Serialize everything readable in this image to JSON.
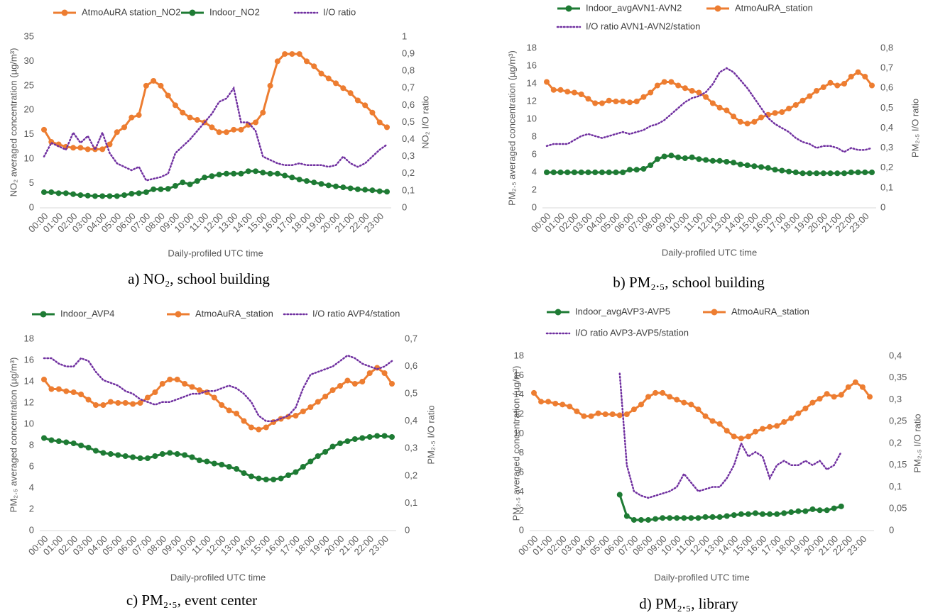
{
  "chart_data": [
    {
      "type": "line",
      "caption": "a) NO₂, school building",
      "xlabel": "Daily-profiled UTC time",
      "ylabel": "NO₂ averaged concentration (µg/m³)",
      "y2label": "NO₂ I/O ratio",
      "categories": [
        "00:00",
        null,
        "01:00",
        null,
        "02:00",
        null,
        "03:00",
        null,
        "04:00",
        null,
        "05:00",
        null,
        "06:00",
        null,
        "07:00",
        null,
        "08:00",
        null,
        "09:00",
        null,
        "10:00",
        null,
        "11:00",
        null,
        "12:00",
        null,
        "13:00",
        null,
        "14:00",
        null,
        "15:00",
        null,
        "16:00",
        null,
        "17:00",
        null,
        "18:00",
        null,
        "19:00",
        null,
        "20:00",
        null,
        "21:00",
        null,
        "22:00",
        null,
        "23:00",
        null
      ],
      "ylim": [
        0,
        35
      ],
      "yticks": [
        0,
        5,
        10,
        15,
        20,
        25,
        30,
        35
      ],
      "y2lim": [
        0,
        1
      ],
      "y2ticks": [
        0,
        {
          "value": 0.1,
          "label": "0,1"
        },
        {
          "value": 0.2,
          "label": "0,2"
        },
        {
          "value": 0.3,
          "label": "0,3"
        },
        {
          "value": 0.4,
          "label": "0,4"
        },
        {
          "value": 0.5,
          "label": "0,5"
        },
        {
          "value": 0.6,
          "label": "0,6"
        },
        {
          "value": 0.7,
          "label": "0,7"
        },
        {
          "value": 0.8,
          "label": "0,8"
        },
        {
          "value": 0.9,
          "label": "0,9"
        },
        1
      ],
      "grid": false,
      "series": [
        {
          "name": "AtmoAuRA station_NO2",
          "color": "#ed7d31",
          "marker": true,
          "values": [
            16,
            13.5,
            13,
            12.5,
            12.3,
            12.3,
            12,
            12,
            12,
            13,
            15.5,
            16.5,
            18.5,
            19,
            25,
            26,
            25,
            23,
            21,
            19.5,
            18.5,
            18,
            17.5,
            16.5,
            15.5,
            15.5,
            16,
            16,
            17,
            17.5,
            19.5,
            25,
            30,
            31.5,
            31.5,
            31.5,
            30,
            29,
            27.5,
            26.5,
            25.5,
            24.5,
            23.5,
            22,
            21,
            19.5,
            17.5,
            16.5
          ]
        },
        {
          "name": "Indoor_NO2",
          "color": "#1e7b34",
          "marker": true,
          "values": [
            3.2,
            3.2,
            3,
            3,
            2.8,
            2.6,
            2.5,
            2.4,
            2.4,
            2.4,
            2.4,
            2.6,
            2.9,
            3,
            3.2,
            3.8,
            3.8,
            3.9,
            4.5,
            5.2,
            4.8,
            5.5,
            6.2,
            6.5,
            6.8,
            7,
            7,
            7,
            7.5,
            7.5,
            7.2,
            7,
            7,
            6.6,
            6.2,
            5.8,
            5.5,
            5.2,
            4.9,
            4.6,
            4.4,
            4.2,
            4,
            3.8,
            3.7,
            3.6,
            3.4,
            3.3
          ]
        },
        {
          "name": "I/O ratio",
          "color": "#7030a0",
          "marker": false,
          "line_style": "dotted",
          "axis": "y2",
          "values": [
            0.3,
            0.38,
            0.36,
            0.34,
            0.44,
            0.38,
            0.42,
            0.34,
            0.44,
            0.32,
            0.26,
            0.24,
            0.22,
            0.24,
            0.16,
            0.17,
            0.18,
            0.2,
            0.32,
            0.36,
            0.4,
            0.45,
            0.5,
            0.55,
            0.62,
            0.64,
            0.7,
            0.5,
            0.5,
            0.45,
            0.3,
            0.28,
            0.26,
            0.25,
            0.25,
            0.26,
            0.25,
            0.25,
            0.25,
            0.24,
            0.25,
            0.3,
            0.26,
            0.24,
            0.26,
            0.3,
            0.34,
            0.37
          ]
        }
      ]
    },
    {
      "type": "line",
      "caption": "b) PM₂.₅, school building",
      "xlabel": "Daily-profiled UTC time",
      "ylabel": "PM₂.₅ averaged concentration (µg/m³)",
      "y2label": "PM₂.₅ I/O ratio",
      "categories": [
        "00:00",
        null,
        "01:00",
        null,
        "02:00",
        null,
        "03:00",
        null,
        "04:00",
        null,
        "05:00",
        null,
        "06:00",
        null,
        "07:00",
        null,
        "08:00",
        null,
        "09:00",
        null,
        "10:00",
        null,
        "11:00",
        null,
        "12:00",
        null,
        "13:00",
        null,
        "14:00",
        null,
        "15:00",
        null,
        "16:00",
        null,
        "17:00",
        null,
        "18:00",
        null,
        "19:00",
        null,
        "20:00",
        null,
        "21:00",
        null,
        "22:00",
        null,
        "23:00",
        null
      ],
      "ylim": [
        0,
        18
      ],
      "yticks": [
        0,
        2,
        4,
        6,
        8,
        10,
        12,
        14,
        16,
        18
      ],
      "y2lim": [
        0,
        0.8
      ],
      "y2ticks": [
        0,
        {
          "value": 0.1,
          "label": "0,1"
        },
        {
          "value": 0.2,
          "label": "0,2"
        },
        {
          "value": 0.3,
          "label": "0,3"
        },
        {
          "value": 0.4,
          "label": "0,4"
        },
        {
          "value": 0.5,
          "label": "0,5"
        },
        {
          "value": 0.6,
          "label": "0,6"
        },
        {
          "value": 0.7,
          "label": "0,7"
        },
        {
          "value": 0.8,
          "label": "0,8"
        }
      ],
      "grid": false,
      "series": [
        {
          "name": "Indoor_avgAVN1-AVN2",
          "color": "#1e7b34",
          "marker": true,
          "values": [
            4,
            4,
            4,
            4,
            4,
            4,
            4,
            4,
            4,
            4,
            4,
            4,
            4.3,
            4.3,
            4.4,
            4.8,
            5.5,
            5.8,
            5.9,
            5.7,
            5.6,
            5.7,
            5.5,
            5.4,
            5.3,
            5.3,
            5.2,
            5.1,
            4.9,
            4.8,
            4.7,
            4.6,
            4.5,
            4.3,
            4.2,
            4.1,
            4,
            3.9,
            3.9,
            3.9,
            3.9,
            3.9,
            3.9,
            3.9,
            4,
            4,
            4,
            4
          ]
        },
        {
          "name": "AtmoAuRA_station",
          "color": "#ed7d31",
          "marker": true,
          "values": [
            14.2,
            13.3,
            13.3,
            13.1,
            13,
            12.8,
            12.3,
            11.8,
            11.8,
            12.1,
            12,
            12,
            11.9,
            12,
            12.5,
            13,
            13.8,
            14.2,
            14.2,
            13.8,
            13.5,
            13.2,
            13,
            12.5,
            11.8,
            11.3,
            11,
            10.3,
            9.7,
            9.5,
            9.7,
            10.2,
            10.5,
            10.7,
            10.8,
            11.2,
            11.6,
            12.1,
            12.6,
            13.2,
            13.6,
            14.1,
            13.8,
            14,
            14.8,
            15.3,
            14.8,
            13.8
          ]
        },
        {
          "name": "I/O ratio AVN1-AVN2/station",
          "color": "#7030a0",
          "marker": false,
          "line_style": "dotted",
          "axis": "y2",
          "values": [
            0.31,
            0.32,
            0.32,
            0.32,
            0.34,
            0.36,
            0.37,
            0.36,
            0.35,
            0.36,
            0.37,
            0.38,
            0.37,
            0.38,
            0.39,
            0.41,
            0.42,
            0.44,
            0.47,
            0.5,
            0.53,
            0.55,
            0.56,
            0.58,
            0.62,
            0.68,
            0.7,
            0.68,
            0.64,
            0.6,
            0.55,
            0.5,
            0.45,
            0.42,
            0.4,
            0.38,
            0.35,
            0.33,
            0.32,
            0.3,
            0.31,
            0.31,
            0.3,
            0.28,
            0.3,
            0.29,
            0.29,
            0.3
          ]
        }
      ]
    },
    {
      "type": "line",
      "caption": "c) PM₂.₅, event center",
      "xlabel": "Daily-profiled UTC time",
      "ylabel": "PM₂.₅ averaged concentration (µg/m³)",
      "y2label": "PM₂.₅ I/O ratio",
      "categories": [
        "00:00",
        null,
        "01:00",
        null,
        "02:00",
        null,
        "03:00",
        null,
        "04:00",
        null,
        "05:00",
        null,
        "06:00",
        null,
        "07:00",
        null,
        "08:00",
        null,
        "09:00",
        null,
        "10:00",
        null,
        "11:00",
        null,
        "12:00",
        null,
        "13:00",
        null,
        "14:00",
        null,
        "15:00",
        null,
        "16:00",
        null,
        "17:00",
        null,
        "18:00",
        null,
        "19:00",
        null,
        "20:00",
        null,
        "21:00",
        null,
        "22:00",
        null,
        "23:00",
        null
      ],
      "ylim": [
        0,
        18
      ],
      "yticks": [
        0,
        2,
        4,
        6,
        8,
        10,
        12,
        14,
        16,
        18
      ],
      "y2lim": [
        0,
        0.7
      ],
      "y2ticks": [
        0,
        {
          "value": 0.1,
          "label": "0,1"
        },
        {
          "value": 0.2,
          "label": "0,2"
        },
        {
          "value": 0.3,
          "label": "0,3"
        },
        {
          "value": 0.4,
          "label": "0,4"
        },
        {
          "value": 0.5,
          "label": "0,5"
        },
        {
          "value": 0.6,
          "label": "0,6"
        },
        {
          "value": 0.7,
          "label": "0,7"
        }
      ],
      "grid": false,
      "series": [
        {
          "name": "Indoor_AVP4",
          "color": "#1e7b34",
          "marker": true,
          "values": [
            8.7,
            8.5,
            8.4,
            8.3,
            8.2,
            8,
            7.8,
            7.5,
            7.3,
            7.2,
            7.1,
            7,
            6.9,
            6.8,
            6.8,
            7,
            7.2,
            7.3,
            7.2,
            7.1,
            6.9,
            6.6,
            6.5,
            6.3,
            6.2,
            6,
            5.8,
            5.4,
            5.1,
            4.9,
            4.8,
            4.8,
            4.9,
            5.2,
            5.5,
            6,
            6.5,
            7,
            7.4,
            7.9,
            8.2,
            8.4,
            8.6,
            8.7,
            8.8,
            8.9,
            8.9,
            8.8
          ]
        },
        {
          "name": "AtmoAuRA_station",
          "color": "#ed7d31",
          "marker": true,
          "values": [
            14.2,
            13.3,
            13.3,
            13.1,
            13,
            12.8,
            12.3,
            11.8,
            11.8,
            12.1,
            12,
            12,
            11.9,
            12,
            12.5,
            13,
            13.8,
            14.2,
            14.2,
            13.8,
            13.5,
            13.2,
            13,
            12.5,
            11.8,
            11.3,
            11,
            10.3,
            9.7,
            9.5,
            9.7,
            10.2,
            10.5,
            10.7,
            10.8,
            11.2,
            11.6,
            12.1,
            12.6,
            13.2,
            13.6,
            14.1,
            13.8,
            14,
            14.8,
            15.3,
            14.8,
            13.8
          ]
        },
        {
          "name": "I/O ratio AVP4/station",
          "color": "#7030a0",
          "marker": false,
          "line_style": "dotted",
          "axis": "y2",
          "values": [
            0.63,
            0.63,
            0.61,
            0.6,
            0.6,
            0.63,
            0.62,
            0.58,
            0.55,
            0.54,
            0.53,
            0.51,
            0.5,
            0.48,
            0.47,
            0.46,
            0.47,
            0.47,
            0.48,
            0.49,
            0.5,
            0.5,
            0.51,
            0.51,
            0.52,
            0.53,
            0.52,
            0.5,
            0.47,
            0.42,
            0.4,
            0.4,
            0.41,
            0.42,
            0.45,
            0.52,
            0.57,
            0.58,
            0.59,
            0.6,
            0.62,
            0.64,
            0.63,
            0.61,
            0.6,
            0.59,
            0.6,
            0.62
          ]
        }
      ]
    },
    {
      "type": "line",
      "caption": "d) PM₂.₅, library",
      "xlabel": "Daily-profiled UTC time",
      "ylabel": "PM₂.₅ averaged concentration (µg/m³)",
      "y2label": "PM₂.₅ I/O ratio",
      "categories": [
        "00:00",
        null,
        "01:00",
        null,
        "02:00",
        null,
        "03:00",
        null,
        "04:00",
        null,
        "05:00",
        null,
        "06:00",
        null,
        "07:00",
        null,
        "08:00",
        null,
        "09:00",
        null,
        "10:00",
        null,
        "11:00",
        null,
        "12:00",
        null,
        "13:00",
        null,
        "14:00",
        null,
        "15:00",
        null,
        "16:00",
        null,
        "17:00",
        null,
        "18:00",
        null,
        "19:00",
        null,
        "20:00",
        null,
        "21:00",
        null,
        "22:00",
        null,
        "23:00",
        null
      ],
      "ylim": [
        0,
        18
      ],
      "yticks": [
        0,
        2,
        4,
        6,
        8,
        10,
        12,
        14,
        16,
        18
      ],
      "y2lim": [
        0,
        0.4
      ],
      "y2ticks": [
        0,
        {
          "value": 0.05,
          "label": "0,05"
        },
        {
          "value": 0.1,
          "label": "0,1"
        },
        {
          "value": 0.15,
          "label": "0,15"
        },
        {
          "value": 0.2,
          "label": "0,2"
        },
        {
          "value": 0.25,
          "label": "0,25"
        },
        {
          "value": 0.3,
          "label": "0,3"
        },
        {
          "value": 0.35,
          "label": "0,35"
        },
        {
          "value": 0.4,
          "label": "0,4"
        }
      ],
      "grid": false,
      "series": [
        {
          "name": "Indoor_avgAVP3-AVP5",
          "color": "#1e7b34",
          "marker": true,
          "values": [
            null,
            null,
            null,
            null,
            null,
            null,
            null,
            null,
            null,
            null,
            null,
            null,
            3.7,
            1.5,
            1.1,
            1.1,
            1.1,
            1.2,
            1.3,
            1.3,
            1.3,
            1.3,
            1.3,
            1.3,
            1.4,
            1.4,
            1.4,
            1.5,
            1.6,
            1.7,
            1.7,
            1.8,
            1.7,
            1.7,
            1.7,
            1.8,
            1.9,
            2.0,
            2.0,
            2.2,
            2.1,
            2.1,
            2.3,
            2.5,
            null,
            null,
            null,
            null
          ]
        },
        {
          "name": "AtmoAuRA_station",
          "color": "#ed7d31",
          "marker": true,
          "values": [
            14.2,
            13.3,
            13.3,
            13.1,
            13,
            12.8,
            12.3,
            11.8,
            11.8,
            12.1,
            12,
            12,
            11.9,
            12,
            12.5,
            13,
            13.8,
            14.2,
            14.2,
            13.8,
            13.5,
            13.2,
            13,
            12.5,
            11.8,
            11.3,
            11,
            10.3,
            9.7,
            9.5,
            9.7,
            10.2,
            10.5,
            10.7,
            10.8,
            11.2,
            11.6,
            12.1,
            12.6,
            13.2,
            13.6,
            14.1,
            13.8,
            14,
            14.8,
            15.3,
            14.8,
            13.8
          ]
        },
        {
          "name": "I/O ratio AVP3-AVP5/station",
          "color": "#7030a0",
          "marker": false,
          "line_style": "dotted",
          "axis": "y2",
          "values": [
            null,
            null,
            null,
            null,
            null,
            null,
            null,
            null,
            null,
            null,
            null,
            null,
            0.36,
            0.15,
            0.09,
            0.08,
            0.075,
            0.08,
            0.085,
            0.09,
            0.1,
            0.13,
            0.11,
            0.09,
            0.095,
            0.1,
            0.1,
            0.12,
            0.15,
            0.2,
            0.17,
            0.18,
            0.17,
            0.12,
            0.15,
            0.16,
            0.15,
            0.15,
            0.16,
            0.15,
            0.16,
            0.14,
            0.15,
            0.18,
            null,
            null,
            null,
            null
          ]
        }
      ]
    }
  ]
}
